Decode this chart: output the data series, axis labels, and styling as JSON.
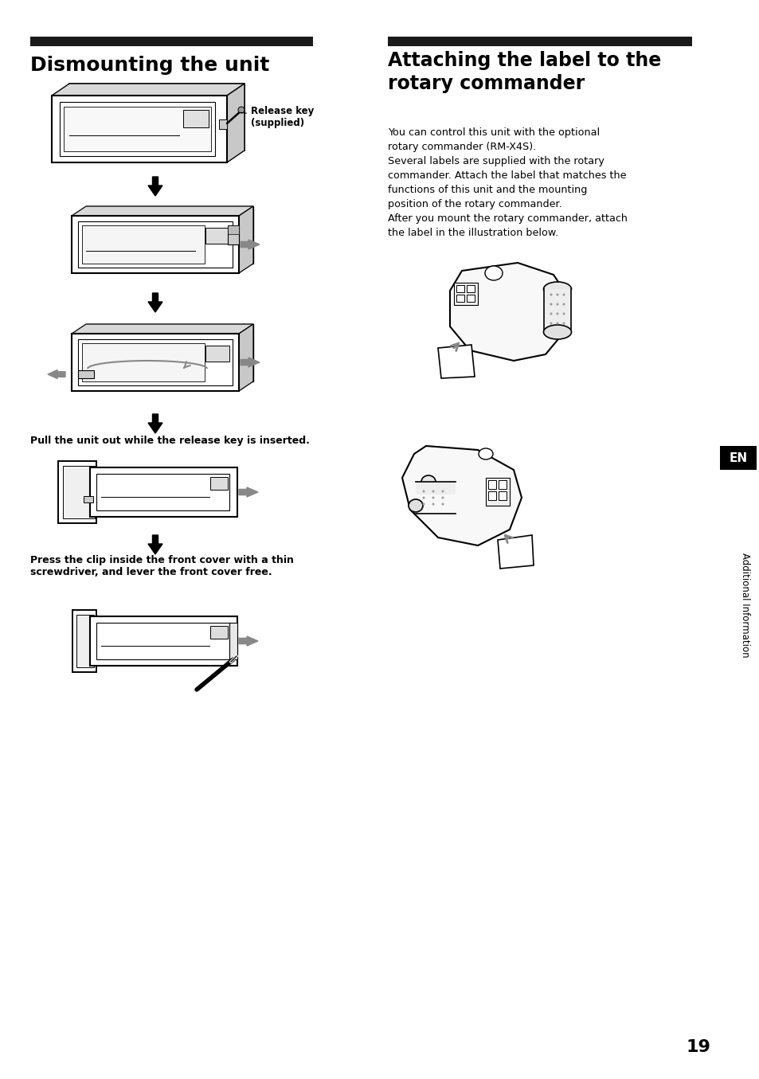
{
  "title_left": "Dismounting the unit",
  "title_right": "Attaching the label to the\nrotary commander",
  "body_right": "You can control this unit with the optional\nrotary commander (RM-X4S).\nSeveral labels are supplied with the rotary\ncommander. Attach the label that matches the\nfunctions of this unit and the mounting\nposition of the rotary commander.\nAfter you mount the rotary commander, attach\nthe label in the illustration below.",
  "caption1": "Release key\n(supplied)",
  "caption2": "Pull the unit out while the release key is inserted.",
  "caption3": "Press the clip inside the front cover with a thin\nscrewdriver, and lever the front cover free.",
  "side_label": "Additional Information",
  "page_number": "19",
  "en_label": "EN",
  "bg_color": "#ffffff",
  "text_color": "#000000",
  "bar_color": "#1a1a1a",
  "gray_color": "#888888"
}
